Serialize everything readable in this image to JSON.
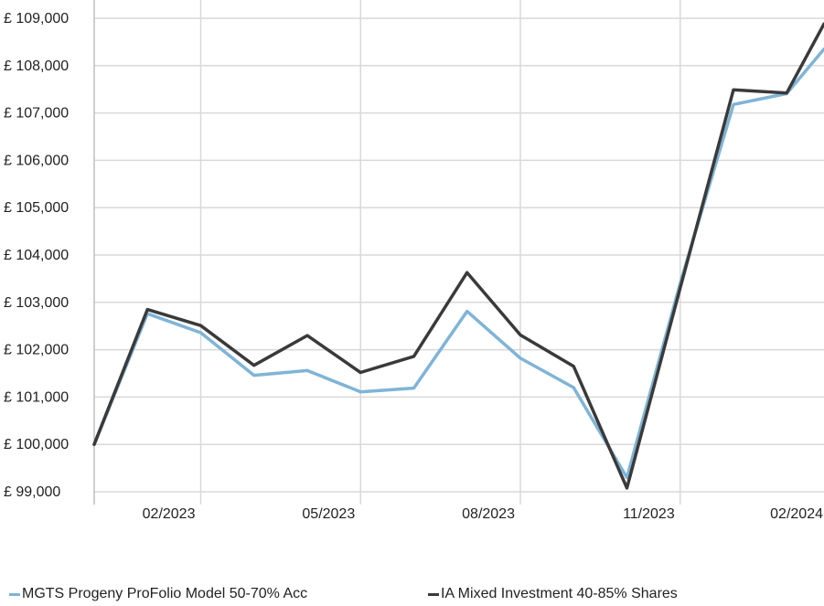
{
  "chart_data": {
    "type": "line",
    "title": "",
    "xlabel": "",
    "ylabel": "",
    "ylim": [
      99000,
      109000
    ],
    "y_ticks": [
      99000,
      100000,
      101000,
      102000,
      103000,
      104000,
      105000,
      106000,
      107000,
      108000,
      109000
    ],
    "y_tick_labels": [
      "£ 99,000",
      "£ 100,000",
      "£ 101,000",
      "£ 102,000",
      "£ 103,000",
      "£ 104,000",
      "£ 105,000",
      "£ 106,000",
      "£ 107,000",
      "£ 108,000",
      "£ 109,000"
    ],
    "x_tick_labels": [
      "02/2023",
      "05/2023",
      "08/2023",
      "11/2023",
      "02/2024"
    ],
    "x_tick_positions": [
      2,
      5,
      8,
      11,
      14
    ],
    "x_range": [
      0,
      13.7
    ],
    "grid": true,
    "legend_position": "bottom",
    "x": [
      0,
      1,
      2,
      3,
      4,
      5,
      6,
      7,
      8,
      9,
      10,
      11,
      12,
      13,
      13.7
    ],
    "series": [
      {
        "name": "MGTS Progeny ProFolio Model 50-70% Acc",
        "color": "#7fb4d6",
        "values": [
          100000,
          102760,
          102360,
          101460,
          101560,
          101110,
          101190,
          102810,
          101820,
          101200,
          99300,
          103400,
          107180,
          107410,
          108350
        ]
      },
      {
        "name": "IA Mixed Investment 40-85% Shares",
        "color": "#3a3a3a",
        "values": [
          100000,
          102850,
          102510,
          101670,
          102300,
          101520,
          101860,
          103630,
          102310,
          101650,
          99080,
          103300,
          107490,
          107420,
          108880
        ]
      }
    ]
  }
}
